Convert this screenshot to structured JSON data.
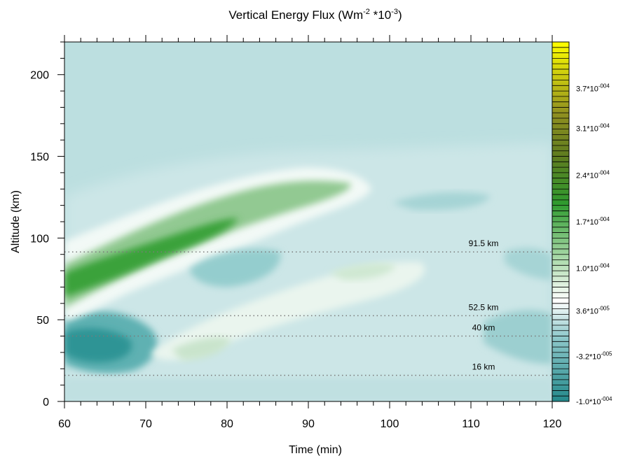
{
  "chart_data": {
    "type": "heatmap",
    "title": "Vertical Energy Flux (Wm",
    "title_sup1": "-2",
    "title_mid": " *10",
    "title_sup2": "-3",
    "title_end": ")",
    "xlabel": "Time (min)",
    "ylabel": "Altitude (km)",
    "xlim": [
      60,
      120
    ],
    "ylim": [
      0,
      220
    ],
    "x_ticks": [
      60,
      70,
      80,
      90,
      100,
      110,
      120
    ],
    "y_ticks": [
      0,
      50,
      100,
      150,
      200
    ],
    "reference_lines": [
      {
        "altitude": 91.5,
        "label": "91.5 km"
      },
      {
        "altitude": 52.5,
        "label": "52.5 km"
      },
      {
        "altitude": 40,
        "label": "40 km"
      },
      {
        "altitude": 16,
        "label": "16 km"
      }
    ],
    "colorbar": {
      "range": [
        -0.0001,
        0.00044
      ],
      "labels": [
        {
          "value": 0.00037,
          "mant": "3.7*10",
          "exp": "-004"
        },
        {
          "value": 0.00031,
          "mant": "3.1*10",
          "exp": "-004"
        },
        {
          "value": 0.00024,
          "mant": "2.4*10",
          "exp": "-004"
        },
        {
          "value": 0.00017,
          "mant": "1.7*10",
          "exp": "-004"
        },
        {
          "value": 0.0001,
          "mant": "1.0*10",
          "exp": "-004"
        },
        {
          "value": 3.6e-05,
          "mant": "3.6*10",
          "exp": "-005"
        },
        {
          "value": -3.2e-05,
          "mant": "-3.2*10",
          "exp": "-005"
        },
        {
          "value": -0.0001,
          "mant": "-1.0*10",
          "exp": "-004"
        }
      ],
      "colors": {
        "low": "#2a8f90",
        "zero": "#ffffff",
        "mid": "#2e9a2e",
        "dark": "#6b7a1a",
        "high": "#ffff00",
        "background": "#bcdfe0"
      }
    },
    "features": [
      {
        "type": "band",
        "name": "positive descending wave",
        "sign": "positive",
        "points": [
          [
            60,
            62
          ],
          [
            70,
            80
          ],
          [
            80,
            98
          ],
          [
            90,
            118
          ],
          [
            96,
            130
          ]
        ]
      },
      {
        "type": "band",
        "name": "negative lower region",
        "sign": "negative",
        "points": [
          [
            60,
            32
          ],
          [
            66,
            30
          ],
          [
            70,
            45
          ]
        ]
      },
      {
        "type": "band",
        "name": "weak positive secondary",
        "sign": "positive",
        "points": [
          [
            74,
            30
          ],
          [
            84,
            46
          ],
          [
            96,
            70
          ],
          [
            100,
            72
          ]
        ]
      },
      {
        "type": "region",
        "name": "negative middle",
        "sign": "negative",
        "points": [
          [
            78,
            76
          ],
          [
            84,
            70
          ]
        ]
      }
    ]
  }
}
